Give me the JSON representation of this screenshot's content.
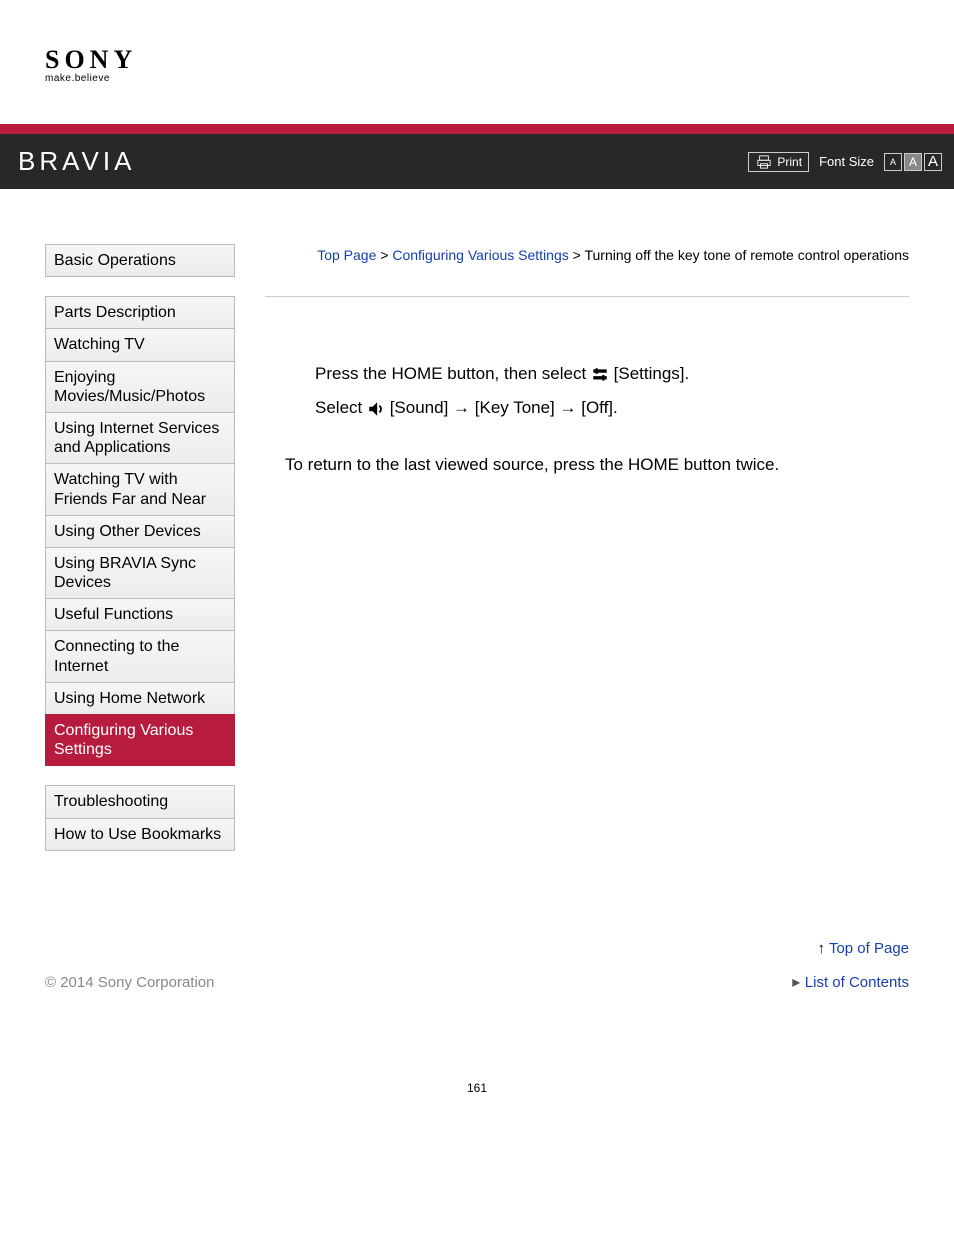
{
  "logo": {
    "brand": "SONY",
    "tagline": "make.believe"
  },
  "header": {
    "product": "BRAVIA",
    "print": "Print",
    "font_size_label": "Font Size"
  },
  "breadcrumb": {
    "top": "Top Page",
    "section": "Configuring Various Settings",
    "current": "Turning off the key tone of remote control operations",
    "sep": " > "
  },
  "sidebar": {
    "group1": [
      "Basic Operations"
    ],
    "group2": [
      "Parts Description",
      "Watching TV",
      "Enjoying Movies/Music/Photos",
      "Using Internet Services and Applications",
      "Watching TV with Friends Far and Near",
      "Using Other Devices",
      "Using BRAVIA Sync Devices",
      "Useful Functions",
      "Connecting to the Internet",
      "Using Home Network",
      "Configuring Various Settings"
    ],
    "group3": [
      "Troubleshooting",
      "How to Use Bookmarks"
    ],
    "active_index_g2": 10
  },
  "steps": {
    "line1_a": "Press the HOME button, then select ",
    "line1_b": " [Settings].",
    "line2_a": "Select ",
    "line2_b": " [Sound] → [Key Tone] → [Off]."
  },
  "return_note": "To return to the last viewed source, press the HOME button twice.",
  "bottom": {
    "top_of_page": "Top of Page",
    "list_contents": "List of Contents"
  },
  "copyright": "© 2014 Sony Corporation",
  "page_number": "161",
  "colors": {
    "accent": "#b71c3f",
    "link": "#1641ac",
    "header_bg": "#28282a"
  }
}
